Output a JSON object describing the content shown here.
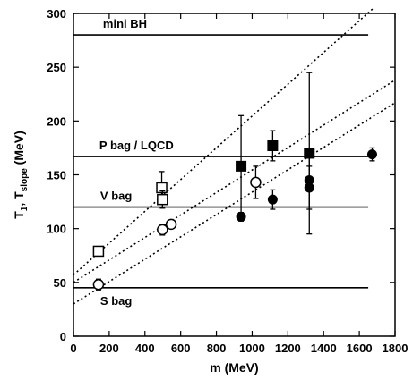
{
  "chart_data": {
    "type": "scatter",
    "xlabel": "m  (MeV)",
    "ylabel": "T",
    "ylabel_sub1": "1",
    "ylabel_mid": ",  T",
    "ylabel_sub2": "slope",
    "ylabel_tail": " (MeV)",
    "xlim": [
      0,
      1800
    ],
    "ylim": [
      0,
      300
    ],
    "xticks": [
      0,
      200,
      400,
      600,
      800,
      1000,
      1200,
      1400,
      1600,
      1800
    ],
    "yticks": [
      0,
      50,
      100,
      150,
      200,
      250,
      300
    ],
    "grid": false,
    "hlines": [
      {
        "label": "mini BH",
        "y": 280
      },
      {
        "label": "P bag / LQCD",
        "y": 167
      },
      {
        "label": "V bag",
        "y": 120
      },
      {
        "label": "S bag",
        "y": 45
      }
    ],
    "dotted_lines": [
      {
        "x": [
          0,
          1680
        ],
        "y": [
          57,
          305
        ]
      },
      {
        "x": [
          0,
          1800
        ],
        "y": [
          50,
          238
        ]
      },
      {
        "x": [
          0,
          1800
        ],
        "y": [
          30,
          217
        ]
      }
    ],
    "series": [
      {
        "marker": "open-square",
        "points": [
          {
            "x": 140,
            "y": 79,
            "err": 3
          },
          {
            "x": 494,
            "y": 138,
            "err": 15
          },
          {
            "x": 498,
            "y": 127,
            "err": 8
          }
        ]
      },
      {
        "marker": "filled-square",
        "points": [
          {
            "x": 938,
            "y": 158,
            "err": 47
          },
          {
            "x": 1115,
            "y": 177,
            "err": 14
          },
          {
            "x": 1320,
            "y": 170,
            "err": 75
          }
        ]
      },
      {
        "marker": "open-circle",
        "points": [
          {
            "x": 140,
            "y": 48,
            "err": 5
          },
          {
            "x": 498,
            "y": 99,
            "err": 5
          },
          {
            "x": 547,
            "y": 104,
            "err": 3
          },
          {
            "x": 1020,
            "y": 143,
            "err": 15
          }
        ]
      },
      {
        "marker": "filled-circle",
        "points": [
          {
            "x": 938,
            "y": 111,
            "err": 4
          },
          {
            "x": 1115,
            "y": 127,
            "err": 9
          },
          {
            "x": 1320,
            "y": 138,
            "err": 20
          },
          {
            "x": 1320,
            "y": 145,
            "err": 25
          },
          {
            "x": 1672,
            "y": 169,
            "err": 6
          }
        ]
      }
    ]
  }
}
